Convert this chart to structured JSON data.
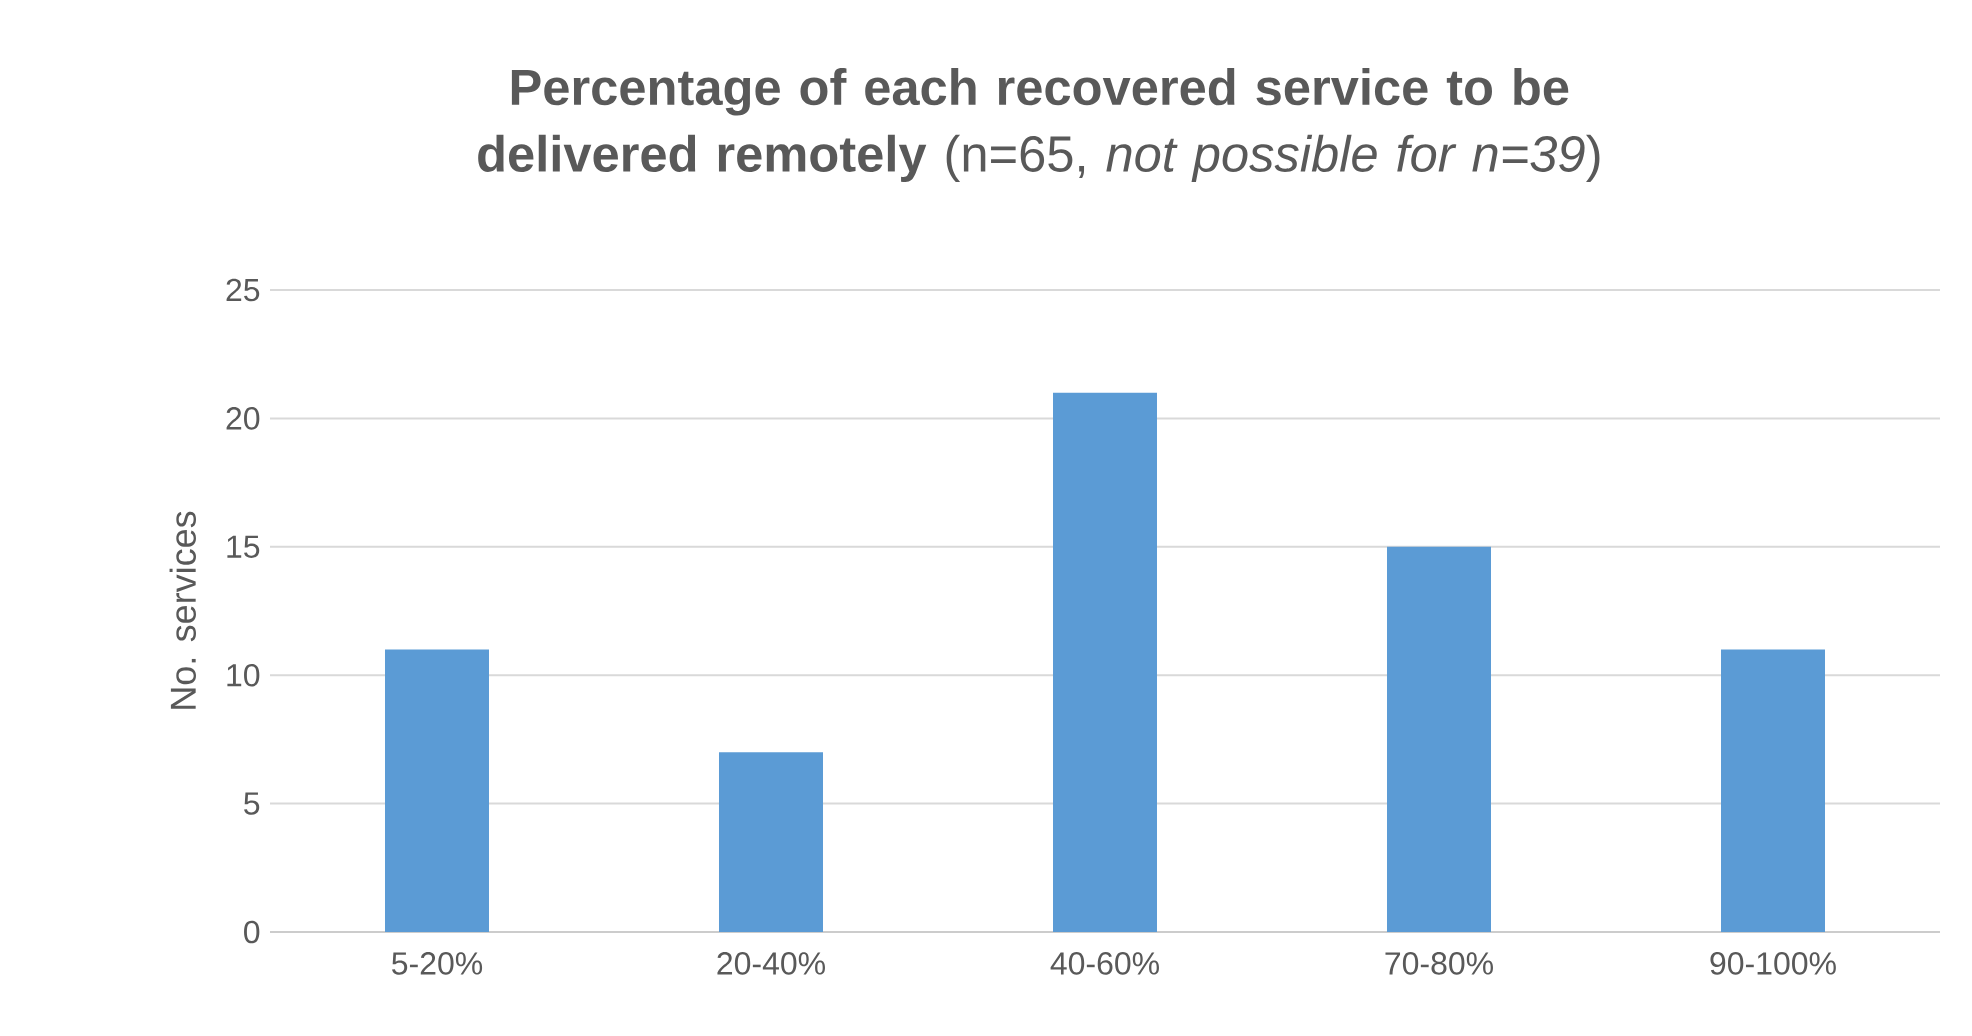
{
  "chart_data": {
    "type": "bar",
    "title": "**Percentage of each recovered service to be delivered remotely** (n=65, *not possible for n=39*)",
    "ylabel": "No. services",
    "categories": [
      "5-20%",
      "20-40%",
      "40-60%",
      "70-80%",
      "90-100%"
    ],
    "values": [
      11,
      7,
      21,
      15,
      11
    ],
    "color": "#5b9bd5",
    "ylim": [
      0,
      25
    ],
    "yticks": [
      0,
      5,
      10,
      15,
      20,
      25
    ],
    "grid": "y"
  }
}
